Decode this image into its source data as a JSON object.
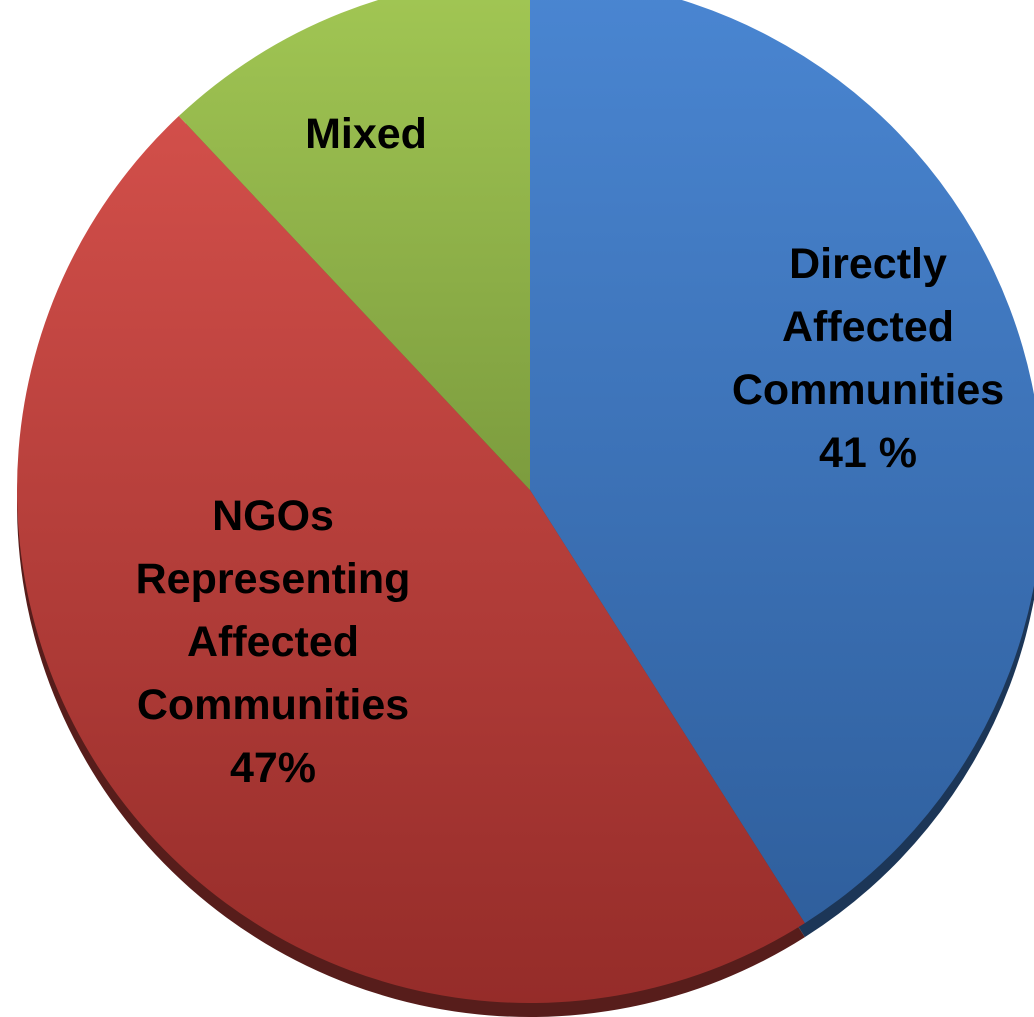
{
  "chart_data": {
    "type": "pie",
    "start": "top",
    "direction": "clockwise",
    "legend": "none",
    "slices": [
      {
        "name": "Directly Affected Communities",
        "label_lines": [
          "Directly",
          "Affected",
          "Communities",
          "41 %"
        ],
        "value": 41,
        "color": "#3f78c1"
      },
      {
        "name": "NGOs Representing Affected Communities",
        "label_lines": [
          "NGOs",
          "Representing",
          "Affected",
          "Communities",
          "47%"
        ],
        "value": 47,
        "color": "#c2403c"
      },
      {
        "name": "Mixed",
        "label_lines": [
          "Mixed"
        ],
        "value": 12,
        "color": "#8fb24a"
      }
    ]
  }
}
